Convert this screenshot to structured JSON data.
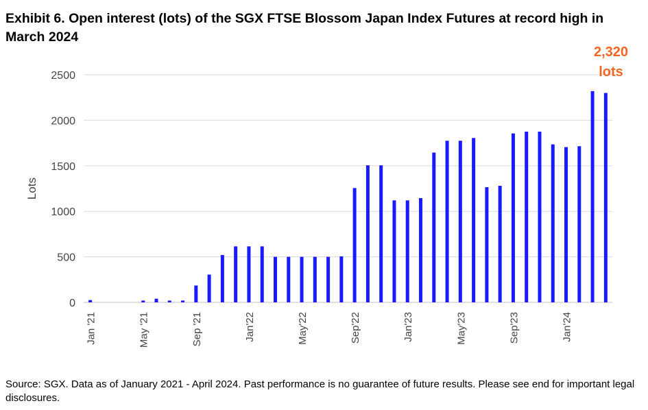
{
  "title": "Exhibit 6. Open interest (lots) of the SGX FTSE Blossom Japan Index Futures at record high in March 2024",
  "callout": {
    "line1": "2,320",
    "line2": "lots",
    "color": "#f26522"
  },
  "footer": "Source: SGX. Data as of January 2021 - April 2024. Past performance is no guarantee of future results. Please see end for important legal disclosures.",
  "chart_data": {
    "type": "bar",
    "title": "Exhibit 6. Open interest (lots) of the SGX FTSE Blossom Japan Index Futures at record high in March 2024",
    "xlabel": "",
    "ylabel": "Lots",
    "ylim": [
      0,
      2500
    ],
    "yticks": [
      0,
      500,
      1000,
      1500,
      2000,
      2500
    ],
    "grid": true,
    "bar_color": "#1a1aff",
    "categories": [
      "Jan '21",
      "Feb '21",
      "Mar '21",
      "Apr '21",
      "May '21",
      "Jun '21",
      "Jul '21",
      "Aug '21",
      "Sep '21",
      "Oct '21",
      "Nov '21",
      "Dec '21",
      "Jan'22",
      "Feb '22",
      "Mar '22",
      "Apr '22",
      "May'22",
      "Jun '22",
      "Jul '22",
      "Aug '22",
      "Sep'22",
      "Oct '22",
      "Nov '22",
      "Dec '22",
      "Jan'23",
      "Feb '23",
      "Mar '23",
      "Apr '23",
      "May'23",
      "Jun '23",
      "Jul '23",
      "Aug '23",
      "Sep'23",
      "Oct '23",
      "Nov '23",
      "Dec '23",
      "Jan'24",
      "Feb '24",
      "Mar '24",
      "Apr '24"
    ],
    "tick_labels": [
      {
        "index": 0,
        "label": "Jan '21"
      },
      {
        "index": 4,
        "label": "May '21"
      },
      {
        "index": 8,
        "label": "Sep '21"
      },
      {
        "index": 12,
        "label": "Jan'22"
      },
      {
        "index": 16,
        "label": "May'22"
      },
      {
        "index": 20,
        "label": "Sep'22"
      },
      {
        "index": 24,
        "label": "Jan'23"
      },
      {
        "index": 28,
        "label": "May'23"
      },
      {
        "index": 32,
        "label": "Sep'23"
      },
      {
        "index": 36,
        "label": "Jan'24"
      }
    ],
    "values": [
      25,
      0,
      0,
      0,
      20,
      40,
      20,
      20,
      185,
      305,
      520,
      615,
      615,
      615,
      500,
      500,
      500,
      500,
      500,
      505,
      1255,
      1505,
      1505,
      1120,
      1120,
      1145,
      1645,
      1775,
      1775,
      1805,
      1265,
      1280,
      1855,
      1875,
      1875,
      1735,
      1705,
      1715,
      2320,
      2300
    ]
  }
}
